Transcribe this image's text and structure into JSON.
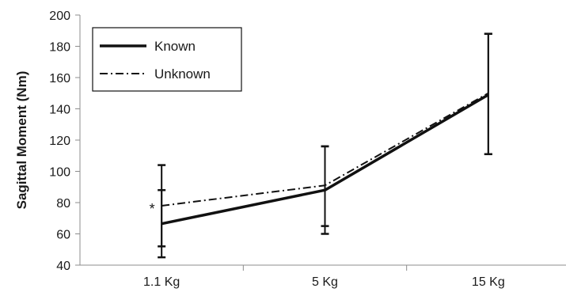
{
  "chart_data": {
    "type": "line",
    "title": "",
    "xlabel": "",
    "ylabel": "Sagittal Moment (Nm)",
    "categories": [
      "1.1 Kg",
      "5 Kg",
      "15 Kg"
    ],
    "ylim": [
      40,
      200
    ],
    "yticks": [
      "40",
      "60",
      "80",
      "100",
      "120",
      "140",
      "160",
      "180",
      "200"
    ],
    "grid": false,
    "legend_position": "top-left",
    "series": [
      {
        "name": "Known",
        "style": "solid",
        "values": [
          66.5,
          88,
          149
        ],
        "error_low": [
          45,
          60,
          111
        ],
        "error_high": [
          104,
          116,
          188
        ]
      },
      {
        "name": "Unknown",
        "style": "dash-dot",
        "values": [
          78,
          91,
          150
        ],
        "error_low": [
          52,
          65,
          111
        ],
        "error_high": [
          88,
          116,
          188
        ]
      }
    ],
    "annotations": [
      {
        "text": "*",
        "category": "1.1 Kg",
        "y": 78
      }
    ]
  }
}
